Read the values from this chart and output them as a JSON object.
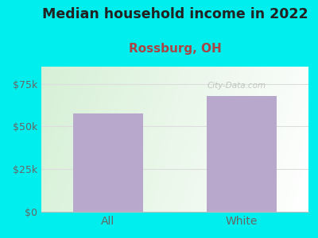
{
  "title": "Median household income in 2022",
  "subtitle": "Rossburg, OH",
  "categories": [
    "All",
    "White"
  ],
  "values": [
    57500,
    68000
  ],
  "bar_color": "#b8a8cc",
  "background_color": "#00EEEE",
  "title_fontsize": 12.5,
  "subtitle_fontsize": 11,
  "tick_label_color": "#666666",
  "subtitle_color": "#aa4444",
  "title_color": "#222222",
  "ylim": [
    0,
    85000
  ],
  "yticks": [
    0,
    25000,
    50000,
    75000
  ],
  "ytick_labels": [
    "$0",
    "$25k",
    "$50k",
    "$75k"
  ],
  "watermark": "City-Data.com",
  "grid_color": "#dddddd",
  "bar_width": 0.52
}
